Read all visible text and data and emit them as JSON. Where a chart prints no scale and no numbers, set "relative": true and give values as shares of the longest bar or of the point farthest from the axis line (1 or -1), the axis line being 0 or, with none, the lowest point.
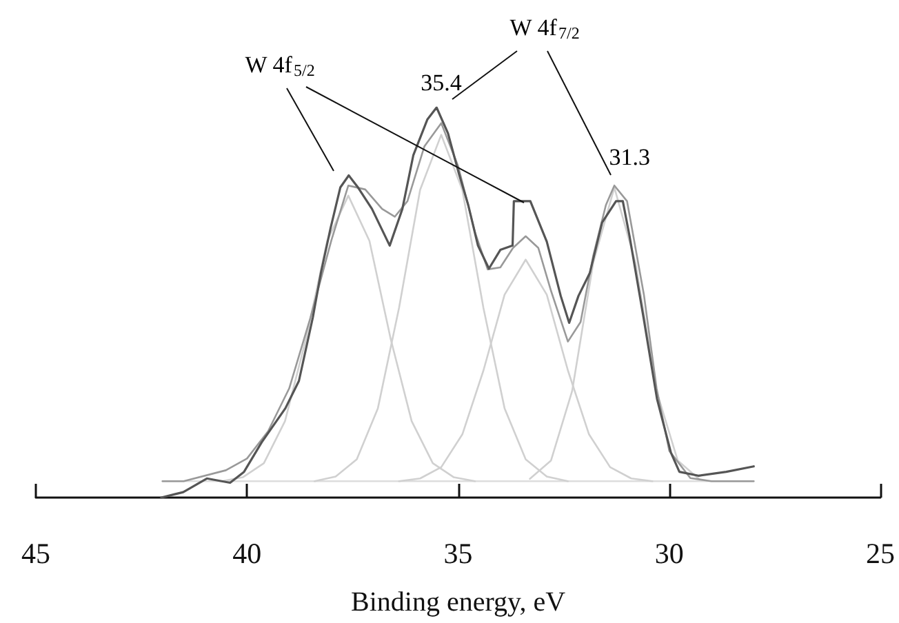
{
  "chart_data": {
    "type": "line",
    "relative": true,
    "xlabel": "Binding energy, eV",
    "xlim": [
      45,
      25
    ],
    "xticks": [
      45,
      40,
      35,
      30,
      25
    ],
    "grid": false,
    "marker": "none",
    "line_style": "solid",
    "annotations": [
      "W 4f$_{5/2}$",
      "W 4f$_{7/2}$",
      {
        "text": "35.4",
        "x": 35.4,
        "y": 1
      },
      {
        "text": "31.3",
        "x": 31.3,
        "y": 0.76
      }
    ],
    "series": [
      {
        "color": "#dddddd",
        "x": [
          42,
          28
        ],
        "values": [
          0.042,
          0.042
        ]
      },
      {
        "color": "#d0d0d0",
        "x": [
          40.6,
          40.1,
          39.6,
          39.1,
          38.6,
          38.1,
          37.6,
          37.1,
          36.6,
          36.1,
          35.6,
          35.1,
          34.6
        ],
        "values": [
          0.042,
          0.052,
          0.088,
          0.196,
          0.408,
          0.658,
          0.774,
          0.658,
          0.408,
          0.196,
          0.088,
          0.052,
          0.042
        ]
      },
      {
        "color": "#d0d0d0",
        "x": [
          38.4,
          37.9,
          37.4,
          36.9,
          36.4,
          35.9,
          35.4,
          34.9,
          34.4,
          33.9,
          33.4,
          32.9,
          32.4
        ],
        "values": [
          0.042,
          0.054,
          0.098,
          0.229,
          0.486,
          0.789,
          0.93,
          0.789,
          0.486,
          0.229,
          0.098,
          0.054,
          0.042
        ]
      },
      {
        "color": "#d0d0d0",
        "x": [
          36.4,
          35.9,
          35.4,
          34.9,
          34.4,
          33.9,
          33.4,
          32.9,
          32.4,
          31.9,
          31.4,
          30.9,
          30.4
        ],
        "values": [
          0.042,
          0.049,
          0.078,
          0.162,
          0.326,
          0.52,
          0.61,
          0.52,
          0.326,
          0.162,
          0.078,
          0.049,
          0.042
        ]
      },
      {
        "color": "#d0d0d0",
        "x": [
          33.3,
          32.8,
          32.3,
          31.8,
          31.3,
          30.8,
          30.3,
          29.8,
          29.3
        ],
        "values": [
          0.048,
          0.095,
          0.273,
          0.602,
          0.795,
          0.602,
          0.273,
          0.095,
          0.048
        ]
      },
      {
        "color": "#999999",
        "x": [
          42,
          41.5,
          40.5,
          40,
          39.5,
          39,
          38.5,
          38,
          37.6,
          37.2,
          36.8,
          36.5,
          36.2,
          35.8,
          35.4,
          35,
          34.6,
          34.3,
          34,
          33.7,
          33.4,
          33.1,
          32.8,
          32.4,
          32.1,
          31.8,
          31.5,
          31.3,
          31,
          30.6,
          30.3,
          30,
          29.5,
          29,
          28
        ],
        "values": [
          0.042,
          0.042,
          0.07,
          0.1,
          0.17,
          0.28,
          0.46,
          0.66,
          0.8,
          0.79,
          0.74,
          0.72,
          0.76,
          0.9,
          0.96,
          0.85,
          0.68,
          0.585,
          0.59,
          0.64,
          0.67,
          0.64,
          0.53,
          0.4,
          0.45,
          0.62,
          0.75,
          0.8,
          0.76,
          0.52,
          0.28,
          0.12,
          0.05,
          0.042,
          0.042
        ]
      },
      {
        "color": "#555555",
        "x": [
          42.03,
          41.51,
          40.95,
          40.4,
          40.07,
          39.65,
          39.09,
          38.77,
          38.44,
          38.25,
          38.02,
          37.79,
          37.59,
          37.37,
          37.04,
          36.62,
          36.32,
          36.06,
          35.73,
          35.51,
          35.24,
          34.98,
          34.76,
          34.53,
          34.27,
          34,
          33.71,
          33.68,
          33.29,
          32.9,
          32.57,
          32.37,
          32.15,
          31.88,
          31.59,
          31.26,
          31.1,
          30.94,
          30.61,
          30.29,
          29.96,
          29.76,
          29.31,
          28.65,
          28
        ],
        "values": [
          0,
          0.014,
          0.049,
          0.038,
          0.066,
          0.142,
          0.229,
          0.299,
          0.462,
          0.576,
          0.691,
          0.795,
          0.826,
          0.795,
          0.74,
          0.646,
          0.74,
          0.878,
          0.969,
          1,
          0.934,
          0.83,
          0.75,
          0.646,
          0.587,
          0.635,
          0.646,
          0.76,
          0.76,
          0.656,
          0.517,
          0.448,
          0.517,
          0.576,
          0.705,
          0.76,
          0.76,
          0.67,
          0.462,
          0.253,
          0.115,
          0.066,
          0.056,
          0.066,
          0.08
        ]
      }
    ]
  }
}
